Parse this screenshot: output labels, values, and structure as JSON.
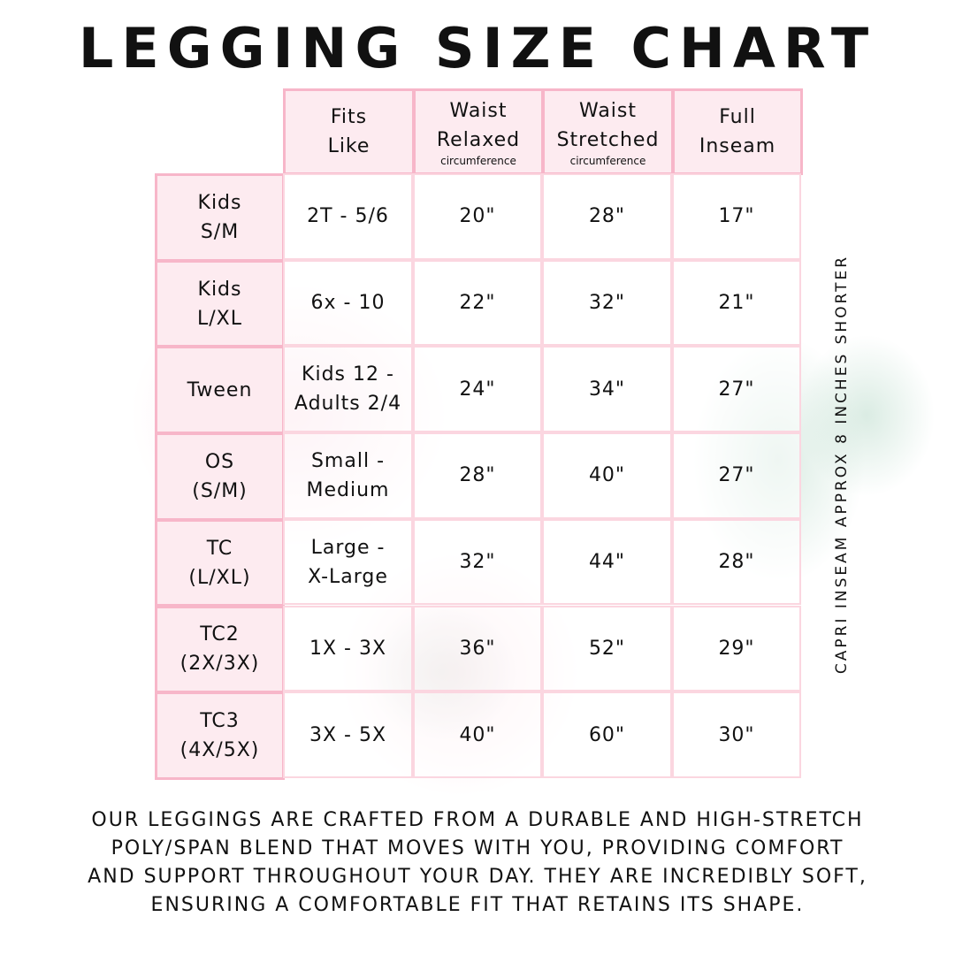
{
  "title": "LEGGING SIZE CHART",
  "columns": [
    {
      "line1": "Fits",
      "line2": "Like",
      "sub": ""
    },
    {
      "line1": "Waist",
      "line2": "Relaxed",
      "sub": "circumference"
    },
    {
      "line1": "Waist",
      "line2": "Stretched",
      "sub": "circumference"
    },
    {
      "line1": "Full",
      "line2": "Inseam",
      "sub": ""
    }
  ],
  "rows": [
    {
      "size": [
        "Kids",
        "S/M"
      ],
      "fits": [
        "2T - 5/6"
      ],
      "relaxed": "20\"",
      "stretched": "28\"",
      "inseam": "17\""
    },
    {
      "size": [
        "Kids",
        "L/XL"
      ],
      "fits": [
        "6x - 10"
      ],
      "relaxed": "22\"",
      "stretched": "32\"",
      "inseam": "21\""
    },
    {
      "size": [
        "Tween"
      ],
      "fits": [
        "Kids 12 -",
        "Adults 2/4"
      ],
      "relaxed": "24\"",
      "stretched": "34\"",
      "inseam": "27\""
    },
    {
      "size": [
        "OS",
        "(S/M)"
      ],
      "fits": [
        "Small -",
        "Medium"
      ],
      "relaxed": "28\"",
      "stretched": "40\"",
      "inseam": "27\""
    },
    {
      "size": [
        "TC",
        "(L/XL)"
      ],
      "fits": [
        "Large -",
        "X-Large"
      ],
      "relaxed": "32\"",
      "stretched": "44\"",
      "inseam": "28\""
    },
    {
      "size": [
        "TC2",
        "(2X/3X)"
      ],
      "fits": [
        "1X - 3X"
      ],
      "relaxed": "36\"",
      "stretched": "52\"",
      "inseam": "29\""
    },
    {
      "size": [
        "TC3",
        "(4X/5X)"
      ],
      "fits": [
        "3X - 5X"
      ],
      "relaxed": "40\"",
      "stretched": "60\"",
      "inseam": "30\""
    }
  ],
  "side_note": "CAPRI INSEAM APPROX 8 INCHES SHORTER",
  "description": [
    "Our leggings are crafted from a durable and high-stretch",
    "poly/span blend that moves with you, providing comfort",
    "and support throughout your day. They are incredibly soft,",
    "ensuring a comfortable fit that retains its shape."
  ],
  "colors": {
    "header_fill": "#fdebf0",
    "border": "#f7b6c9"
  }
}
